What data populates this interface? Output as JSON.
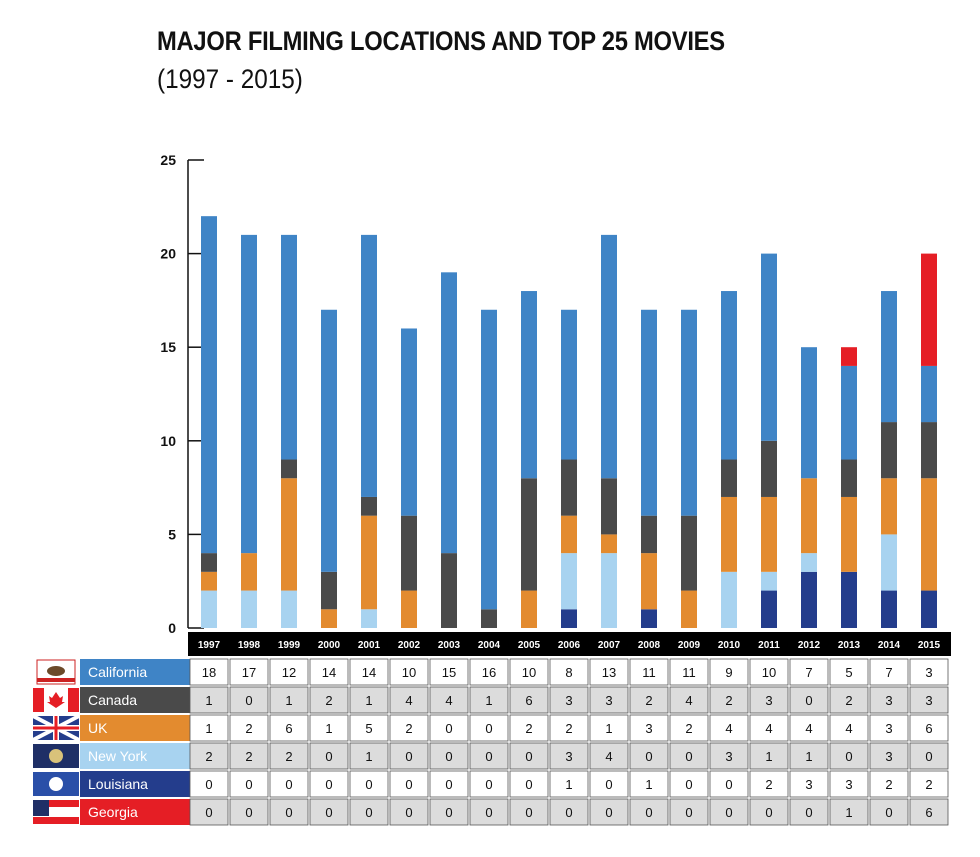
{
  "header": {
    "title": "MAJOR FILMING LOCATIONS AND TOP 25 MOVIES",
    "subtitle": "(1997 - 2015)"
  },
  "chart_data": {
    "type": "bar",
    "stacked": true,
    "title": "MAJOR FILMING LOCATIONS AND TOP 25 MOVIES",
    "subtitle": "(1997 - 2015)",
    "xlabel": "",
    "ylabel": "",
    "ylim": [
      0,
      25
    ],
    "yticks": [
      0,
      5,
      10,
      15,
      20,
      25
    ],
    "grid": false,
    "legend": "data-table-below",
    "categories": [
      "1997",
      "1998",
      "1999",
      "2000",
      "2001",
      "2002",
      "2003",
      "2004",
      "2005",
      "2006",
      "2007",
      "2008",
      "2009",
      "2010",
      "2011",
      "2012",
      "2013",
      "2014",
      "2015"
    ],
    "stack_order": [
      "Louisiana",
      "New York",
      "UK",
      "Canada",
      "California",
      "Georgia"
    ],
    "series": [
      {
        "name": "California",
        "color": "#3f84c6",
        "icon": "california-flag-icon",
        "values": [
          18,
          17,
          12,
          14,
          14,
          10,
          15,
          16,
          10,
          8,
          13,
          11,
          11,
          9,
          10,
          7,
          5,
          7,
          3
        ]
      },
      {
        "name": "Canada",
        "color": "#4a4a4a",
        "icon": "canada-flag-icon",
        "values": [
          1,
          0,
          1,
          2,
          1,
          4,
          4,
          1,
          6,
          3,
          3,
          2,
          4,
          2,
          3,
          0,
          2,
          3,
          3
        ]
      },
      {
        "name": "UK",
        "color": "#e38b2f",
        "icon": "uk-flag-icon",
        "values": [
          1,
          2,
          6,
          1,
          5,
          2,
          0,
          0,
          2,
          2,
          1,
          3,
          2,
          4,
          4,
          4,
          4,
          3,
          6
        ]
      },
      {
        "name": "New York",
        "color": "#a8d3f0",
        "icon": "new-york-flag-icon",
        "values": [
          2,
          2,
          2,
          0,
          1,
          0,
          0,
          0,
          0,
          3,
          4,
          0,
          0,
          3,
          1,
          1,
          0,
          3,
          0
        ]
      },
      {
        "name": "Louisiana",
        "color": "#243d8c",
        "icon": "louisiana-flag-icon",
        "values": [
          0,
          0,
          0,
          0,
          0,
          0,
          0,
          0,
          0,
          1,
          0,
          1,
          0,
          0,
          2,
          3,
          3,
          2,
          2
        ]
      },
      {
        "name": "Georgia",
        "color": "#e51e25",
        "icon": "georgia-flag-icon",
        "values": [
          0,
          0,
          0,
          0,
          0,
          0,
          0,
          0,
          0,
          0,
          0,
          0,
          0,
          0,
          0,
          0,
          1,
          0,
          6
        ]
      }
    ]
  }
}
